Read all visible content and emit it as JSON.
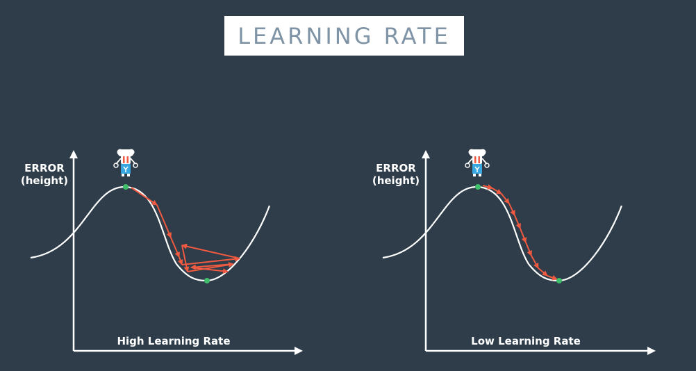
{
  "title": "LEARNING RATE",
  "panels": [
    {
      "y_label_line1": "ERROR",
      "y_label_line2": "(height)",
      "x_label": "High Learning Rate"
    },
    {
      "y_label_line1": "ERROR",
      "y_label_line2": "(height)",
      "x_label": "Low Learning Rate"
    }
  ],
  "colors": {
    "background": "#2f3d4a",
    "curve": "#ffffff",
    "steps": "#f05a40",
    "markers": "#3fbf6a",
    "title_text": "#7e93a5"
  }
}
